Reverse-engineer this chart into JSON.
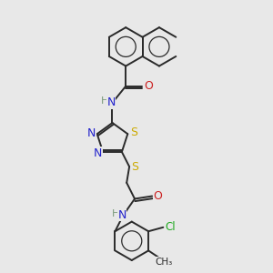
{
  "bg_color": "#e8e8e8",
  "bond_color": "#2a2a2a",
  "bond_width": 1.4,
  "n_color": "#2222cc",
  "o_color": "#cc2222",
  "s_color": "#ccaa00",
  "cl_color": "#22aa22",
  "h_color": "#7a9a7a",
  "figsize": [
    3.0,
    3.0
  ],
  "dpi": 100,
  "xlim": [
    0,
    10
  ],
  "ylim": [
    0,
    10
  ]
}
